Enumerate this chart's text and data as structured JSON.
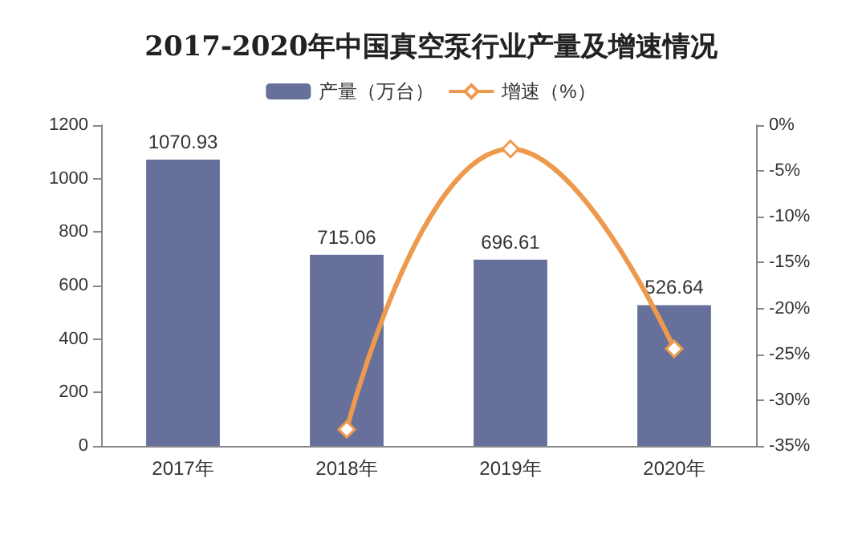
{
  "chart_data": {
    "type": "bar",
    "title": "2017-2020年中国真空泵行业产量及增速情况",
    "categories": [
      "2017年",
      "2018年",
      "2019年",
      "2020年"
    ],
    "series": [
      {
        "name": "产量（万台）",
        "color": "#67709a",
        "values": [
          1070.93,
          715.06,
          696.61,
          526.64
        ],
        "value_labels": [
          "1070.93",
          "715.06",
          "696.61",
          "526.64"
        ]
      },
      {
        "name": "增速（%）",
        "type": "line",
        "axis": "y2",
        "color": "#ed9a4e",
        "values": [
          null,
          -33.2,
          -2.6,
          -24.4
        ],
        "marker": "diamond"
      }
    ],
    "ylim": [
      0,
      1200
    ],
    "yticks": [
      0,
      200,
      400,
      600,
      800,
      1000,
      1200
    ],
    "y2lim": [
      -35,
      0
    ],
    "y2ticks": [
      {
        "value": -35,
        "label": "-35%"
      },
      {
        "value": -30,
        "label": "-30%"
      },
      {
        "value": -25,
        "label": "-25%"
      },
      {
        "value": -20,
        "label": "-20%"
      },
      {
        "value": -15,
        "label": "-15%"
      },
      {
        "value": -10,
        "label": "-10%"
      },
      {
        "value": -5,
        "label": "-5%"
      },
      {
        "value": 0,
        "label": "0%"
      }
    ],
    "legend": "top",
    "grid": false
  }
}
